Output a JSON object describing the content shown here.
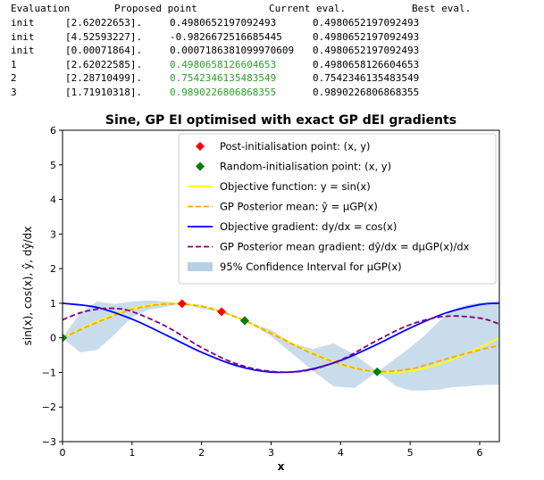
{
  "log": {
    "headers": [
      "Evaluation",
      "Proposed point",
      "Current eval.",
      "Best eval."
    ],
    "rows": [
      {
        "eval": "init",
        "proposed": "[2.62022653].",
        "current": "0.4980652197092493",
        "best": "0.4980652197092493",
        "highlight": false
      },
      {
        "eval": "init",
        "proposed": "[4.52593227].",
        "current": "-0.9826672516685445",
        "best": "0.4980652197092493",
        "highlight": false
      },
      {
        "eval": "init",
        "proposed": "[0.00071864].",
        "current": "0.0007186381099970609",
        "best": "0.4980652197092493",
        "highlight": false
      },
      {
        "eval": "1",
        "proposed": "[2.62022585].",
        "current": "0.4980658126604653",
        "best": "0.4980658126604653",
        "highlight": true
      },
      {
        "eval": "2",
        "proposed": "[2.28710499].",
        "current": "0.7542346135483549",
        "best": "0.7542346135483549",
        "highlight": true
      },
      {
        "eval": "3",
        "proposed": "[1.71910318].",
        "current": "0.9890226806868355",
        "best": "0.9890226806868355",
        "highlight": true
      }
    ],
    "highlight_color": "#2ca02c"
  },
  "chart_data": {
    "type": "line",
    "title": "Sine, GP EI optimised with exact GP dEI gradients",
    "xlabel": "x",
    "ylabel": "sin(x), cos(x), ŷ, dŷ/dx",
    "xlim": [
      0,
      6.283
    ],
    "ylim": [
      -3,
      6
    ],
    "xticks": [
      "0",
      "1",
      "2",
      "3",
      "4",
      "5",
      "6"
    ],
    "yticks": [
      "−3",
      "−2",
      "−1",
      "0",
      "1",
      "2",
      "3",
      "4",
      "5",
      "6"
    ],
    "grid": false,
    "legend_position": "top-right",
    "series": [
      {
        "name": "Post-initialisation point: (x, y)",
        "kind": "marker",
        "marker": "diamond",
        "color": "#ff0000",
        "points": [
          [
            1.71910318,
            0.98902268
          ],
          [
            2.28710499,
            0.75423461
          ],
          [
            2.62022585,
            0.49806581
          ]
        ]
      },
      {
        "name": "Random-initialisation point: (x, y)",
        "kind": "marker",
        "marker": "diamond",
        "color": "#008000",
        "points": [
          [
            0.00071864,
            0.00071864
          ],
          [
            2.62022653,
            0.49806522
          ],
          [
            4.52593227,
            -0.98266725
          ]
        ]
      },
      {
        "name": "Objective function: y = sin(x)",
        "kind": "line",
        "color": "#ffff00",
        "style": "solid",
        "x": [
          0,
          0.5,
          1.0,
          1.5,
          2.0,
          2.5,
          3.0,
          3.5,
          4.0,
          4.5,
          5.0,
          5.5,
          6.0,
          6.283
        ],
        "y": [
          0,
          0.479,
          0.841,
          0.997,
          0.909,
          0.598,
          0.141,
          -0.351,
          -0.757,
          -0.978,
          -0.959,
          -0.706,
          -0.279,
          0
        ]
      },
      {
        "name": "GP Posterior mean: ŷ = μGP(x)",
        "kind": "line",
        "color": "#ffa500",
        "style": "dashed",
        "x": [
          0,
          0.5,
          1.0,
          1.5,
          2.0,
          2.5,
          3.0,
          3.5,
          4.0,
          4.5,
          5.0,
          5.5,
          6.0,
          6.283
        ],
        "y": [
          0,
          0.45,
          0.82,
          0.98,
          0.91,
          0.6,
          0.13,
          -0.37,
          -0.76,
          -0.97,
          -0.9,
          -0.62,
          -0.35,
          -0.22
        ]
      },
      {
        "name": "Objective gradient: dy/dx = cos(x)",
        "kind": "line",
        "color": "#0000ff",
        "style": "solid",
        "x": [
          0,
          0.5,
          1.0,
          1.5,
          2.0,
          2.5,
          3.0,
          3.5,
          4.0,
          4.5,
          5.0,
          5.5,
          6.0,
          6.283
        ],
        "y": [
          1,
          0.878,
          0.54,
          0.071,
          -0.416,
          -0.801,
          -0.99,
          -0.936,
          -0.654,
          -0.211,
          0.284,
          0.709,
          0.96,
          1
        ]
      },
      {
        "name": "GP Posterior mean gradient: dŷ/dx = dμGP(x)/dx",
        "kind": "line",
        "color": "#800080",
        "style": "dashed",
        "x": [
          0,
          0.25,
          0.5,
          0.75,
          1.0,
          1.5,
          2.0,
          2.5,
          3.0,
          3.5,
          4.0,
          4.5,
          5.0,
          5.5,
          6.0,
          6.283
        ],
        "y": [
          0.52,
          0.72,
          0.83,
          0.85,
          0.76,
          0.32,
          -0.28,
          -0.75,
          -0.97,
          -0.95,
          -0.64,
          -0.1,
          0.38,
          0.62,
          0.57,
          0.4
        ]
      },
      {
        "name": "95% Confidence Interval for μGP(x)",
        "kind": "band",
        "color": "#b7d0e4",
        "x": [
          0,
          0.25,
          0.5,
          0.75,
          1.0,
          1.25,
          1.5,
          1.72,
          2.0,
          2.29,
          2.62,
          3.0,
          3.3,
          3.6,
          3.9,
          4.2,
          4.53,
          4.8,
          5.0,
          5.2,
          5.4,
          5.6,
          5.8,
          6.0,
          6.283
        ],
        "lower": [
          0,
          -0.42,
          -0.35,
          0.1,
          0.6,
          0.82,
          0.9,
          0.99,
          0.84,
          0.75,
          0.5,
          0.05,
          -0.45,
          -0.95,
          -1.4,
          -1.45,
          -0.98,
          -1.4,
          -1.52,
          -1.52,
          -1.5,
          -1.43,
          -1.4,
          -1.37,
          -1.35
        ],
        "upper": [
          0,
          0.72,
          1.05,
          0.98,
          1.05,
          1.08,
          1.05,
          0.99,
          0.96,
          0.75,
          0.5,
          0.23,
          -0.15,
          -0.32,
          -0.16,
          -0.48,
          -0.98,
          -0.58,
          -0.28,
          0.05,
          0.45,
          0.8,
          0.95,
          1.02,
          1.07
        ]
      }
    ]
  }
}
